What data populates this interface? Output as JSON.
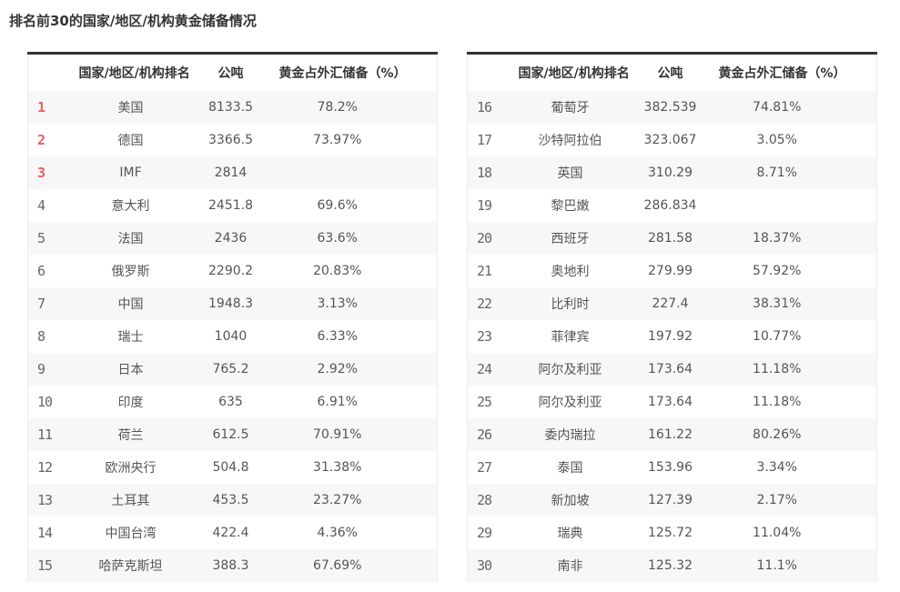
{
  "title": "排名前30的国家/地区/机构黄金储备情况",
  "colors": {
    "accent_red_top3_rank": "#ea5f5f",
    "header_text": "#333333",
    "cell_text": "#555555",
    "stripe_row_bg": "#f7f7f7",
    "table_top_border": "#333333"
  },
  "column_headers": [
    "",
    "国家/地区/机构排名",
    "公吨",
    "黄金占外汇储备（%）"
  ],
  "tables": [
    {
      "name": "ranks-1-15",
      "rows": [
        [
          "1",
          "美国",
          "8133.5",
          "78.2%"
        ],
        [
          "2",
          "德国",
          "3366.5",
          "73.97%"
        ],
        [
          "3",
          "IMF",
          "2814",
          ""
        ],
        [
          "4",
          "意大利",
          "2451.8",
          "69.6%"
        ],
        [
          "5",
          "法国",
          "2436",
          "63.6%"
        ],
        [
          "6",
          "俄罗斯",
          "2290.2",
          "20.83%"
        ],
        [
          "7",
          "中国",
          "1948.3",
          "3.13%"
        ],
        [
          "8",
          "瑞士",
          "1040",
          "6.33%"
        ],
        [
          "9",
          "日本",
          "765.2",
          "2.92%"
        ],
        [
          "10",
          "印度",
          "635",
          "6.91%"
        ],
        [
          "11",
          "荷兰",
          "612.5",
          "70.91%"
        ],
        [
          "12",
          "欧洲央行",
          "504.8",
          "31.38%"
        ],
        [
          "13",
          "土耳其",
          "453.5",
          "23.27%"
        ],
        [
          "14",
          "中国台湾",
          "422.4",
          "4.36%"
        ],
        [
          "15",
          "哈萨克斯坦",
          "388.3",
          "67.69%"
        ]
      ]
    },
    {
      "name": "ranks-16-30",
      "rows": [
        [
          "16",
          "葡萄牙",
          "382.539",
          "74.81%"
        ],
        [
          "17",
          "沙特阿拉伯",
          "323.067",
          "3.05%"
        ],
        [
          "18",
          "英国",
          "310.29",
          "8.71%"
        ],
        [
          "19",
          "黎巴嫩",
          "286.834",
          ""
        ],
        [
          "20",
          "西班牙",
          "281.58",
          "18.37%"
        ],
        [
          "21",
          "奥地利",
          "279.99",
          "57.92%"
        ],
        [
          "22",
          "比利时",
          "227.4",
          "38.31%"
        ],
        [
          "23",
          "菲律宾",
          "197.92",
          "10.77%"
        ],
        [
          "24",
          "阿尔及利亚",
          "173.64",
          "11.18%"
        ],
        [
          "25",
          "阿尔及利亚",
          "173.64",
          "11.18%"
        ],
        [
          "26",
          "委内瑞拉",
          "161.22",
          "80.26%"
        ],
        [
          "27",
          "泰国",
          "153.96",
          "3.34%"
        ],
        [
          "28",
          "新加坡",
          "127.39",
          "2.17%"
        ],
        [
          "29",
          "瑞典",
          "125.72",
          "11.04%"
        ],
        [
          "30",
          "南非",
          "125.32",
          "11.1%"
        ]
      ]
    }
  ],
  "chart_data": {
    "type": "table",
    "title": "排名前30的国家/地区/机构黄金储备情况",
    "columns": [
      "排名",
      "国家/地区/机构",
      "公吨",
      "黄金占外汇储备（%）"
    ],
    "rows": [
      [
        1,
        "美国",
        8133.5,
        78.2
      ],
      [
        2,
        "德国",
        3366.5,
        73.97
      ],
      [
        3,
        "IMF",
        2814,
        null
      ],
      [
        4,
        "意大利",
        2451.8,
        69.6
      ],
      [
        5,
        "法国",
        2436,
        63.6
      ],
      [
        6,
        "俄罗斯",
        2290.2,
        20.83
      ],
      [
        7,
        "中国",
        1948.3,
        3.13
      ],
      [
        8,
        "瑞士",
        1040,
        6.33
      ],
      [
        9,
        "日本",
        765.2,
        2.92
      ],
      [
        10,
        "印度",
        635,
        6.91
      ],
      [
        11,
        "荷兰",
        612.5,
        70.91
      ],
      [
        12,
        "欧洲央行",
        504.8,
        31.38
      ],
      [
        13,
        "土耳其",
        453.5,
        23.27
      ],
      [
        14,
        "中国台湾",
        422.4,
        4.36
      ],
      [
        15,
        "哈萨克斯坦",
        388.3,
        67.69
      ],
      [
        16,
        "葡萄牙",
        382.539,
        74.81
      ],
      [
        17,
        "沙特阿拉伯",
        323.067,
        3.05
      ],
      [
        18,
        "英国",
        310.29,
        8.71
      ],
      [
        19,
        "黎巴嫩",
        286.834,
        null
      ],
      [
        20,
        "西班牙",
        281.58,
        18.37
      ],
      [
        21,
        "奥地利",
        279.99,
        57.92
      ],
      [
        22,
        "比利时",
        227.4,
        38.31
      ],
      [
        23,
        "菲律宾",
        197.92,
        10.77
      ],
      [
        24,
        "阿尔及利亚",
        173.64,
        11.18
      ],
      [
        25,
        "阿尔及利亚",
        173.64,
        11.18
      ],
      [
        26,
        "委内瑞拉",
        161.22,
        80.26
      ],
      [
        27,
        "泰国",
        153.96,
        3.34
      ],
      [
        28,
        "新加坡",
        127.39,
        2.17
      ],
      [
        29,
        "瑞典",
        125.72,
        11.04
      ],
      [
        30,
        "南非",
        125.32,
        11.1
      ]
    ]
  }
}
